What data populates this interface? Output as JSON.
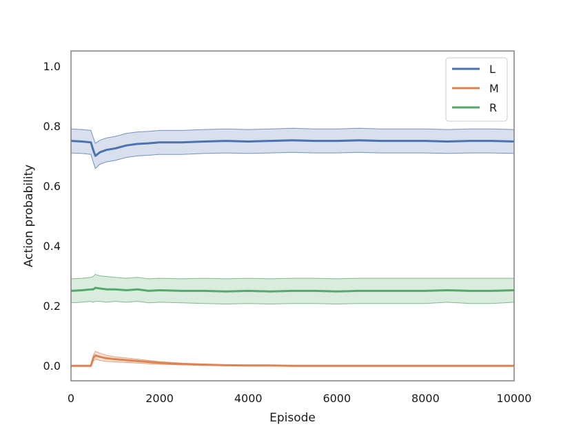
{
  "chart_data": {
    "type": "line",
    "title": "",
    "xlabel": "Episode",
    "ylabel": "Action probability",
    "xlim": [
      0,
      10000
    ],
    "ylim": [
      -0.05,
      1.05
    ],
    "xticks": [
      0,
      2000,
      4000,
      6000,
      8000,
      10000
    ],
    "xtick_labels": [
      "0",
      "2000",
      "4000",
      "6000",
      "8000",
      "10000"
    ],
    "yticks": [
      0.0,
      0.2,
      0.4,
      0.6,
      0.8,
      1.0
    ],
    "ytick_labels": [
      "0.0",
      "0.2",
      "0.4",
      "0.6",
      "0.8",
      "1.0"
    ],
    "grid": false,
    "legend_position": "top-right",
    "x": [
      0,
      250,
      450,
      500,
      550,
      650,
      800,
      1000,
      1250,
      1500,
      1750,
      2000,
      2500,
      3000,
      3500,
      4000,
      4500,
      5000,
      5500,
      6000,
      6500,
      7000,
      7500,
      8000,
      8500,
      9000,
      9500,
      10000
    ],
    "series": [
      {
        "name": "L",
        "color": "#4c72b0",
        "values": [
          0.75,
          0.748,
          0.745,
          0.72,
          0.7,
          0.712,
          0.72,
          0.725,
          0.735,
          0.74,
          0.742,
          0.745,
          0.745,
          0.748,
          0.75,
          0.748,
          0.75,
          0.752,
          0.75,
          0.75,
          0.752,
          0.75,
          0.75,
          0.75,
          0.748,
          0.75,
          0.75,
          0.748
        ],
        "upper": [
          0.79,
          0.788,
          0.785,
          0.762,
          0.742,
          0.752,
          0.76,
          0.765,
          0.775,
          0.78,
          0.782,
          0.785,
          0.785,
          0.788,
          0.79,
          0.788,
          0.79,
          0.792,
          0.79,
          0.79,
          0.792,
          0.79,
          0.79,
          0.79,
          0.788,
          0.79,
          0.79,
          0.788
        ],
        "lower": [
          0.71,
          0.708,
          0.705,
          0.68,
          0.658,
          0.672,
          0.68,
          0.685,
          0.695,
          0.7,
          0.702,
          0.705,
          0.705,
          0.708,
          0.71,
          0.708,
          0.71,
          0.712,
          0.71,
          0.71,
          0.712,
          0.71,
          0.71,
          0.71,
          0.708,
          0.71,
          0.71,
          0.708
        ]
      },
      {
        "name": "M",
        "color": "#dd8452",
        "values": [
          0.0,
          0.0,
          0.0,
          0.025,
          0.035,
          0.03,
          0.025,
          0.022,
          0.019,
          0.016,
          0.013,
          0.01,
          0.006,
          0.004,
          0.002,
          0.001,
          0.001,
          0.0,
          0.0,
          0.0,
          0.0,
          0.0,
          0.0,
          0.0,
          0.0,
          0.0,
          0.0,
          0.0
        ],
        "upper": [
          0.0,
          0.0,
          0.0,
          0.035,
          0.048,
          0.042,
          0.035,
          0.03,
          0.026,
          0.022,
          0.018,
          0.014,
          0.009,
          0.006,
          0.003,
          0.002,
          0.001,
          0.0,
          0.0,
          0.0,
          0.0,
          0.0,
          0.0,
          0.0,
          0.0,
          0.0,
          0.0,
          0.0
        ],
        "lower": [
          0.0,
          0.0,
          0.0,
          0.015,
          0.022,
          0.018,
          0.015,
          0.013,
          0.011,
          0.009,
          0.007,
          0.005,
          0.003,
          0.001,
          0.0,
          0.0,
          0.0,
          0.0,
          0.0,
          0.0,
          0.0,
          0.0,
          0.0,
          0.0,
          0.0,
          0.0,
          0.0,
          0.0
        ]
      },
      {
        "name": "R",
        "color": "#55a868",
        "values": [
          0.25,
          0.252,
          0.255,
          0.255,
          0.26,
          0.258,
          0.255,
          0.255,
          0.252,
          0.255,
          0.25,
          0.252,
          0.25,
          0.25,
          0.248,
          0.25,
          0.248,
          0.25,
          0.25,
          0.248,
          0.25,
          0.25,
          0.25,
          0.25,
          0.252,
          0.25,
          0.25,
          0.252
        ],
        "upper": [
          0.29,
          0.292,
          0.295,
          0.298,
          0.305,
          0.3,
          0.298,
          0.295,
          0.292,
          0.295,
          0.29,
          0.292,
          0.29,
          0.292,
          0.29,
          0.292,
          0.29,
          0.292,
          0.292,
          0.29,
          0.292,
          0.292,
          0.292,
          0.292,
          0.292,
          0.292,
          0.292,
          0.292
        ],
        "lower": [
          0.21,
          0.212,
          0.215,
          0.212,
          0.215,
          0.215,
          0.212,
          0.215,
          0.212,
          0.215,
          0.21,
          0.212,
          0.21,
          0.208,
          0.206,
          0.208,
          0.206,
          0.208,
          0.208,
          0.206,
          0.208,
          0.208,
          0.208,
          0.208,
          0.212,
          0.208,
          0.208,
          0.212
        ]
      }
    ]
  }
}
